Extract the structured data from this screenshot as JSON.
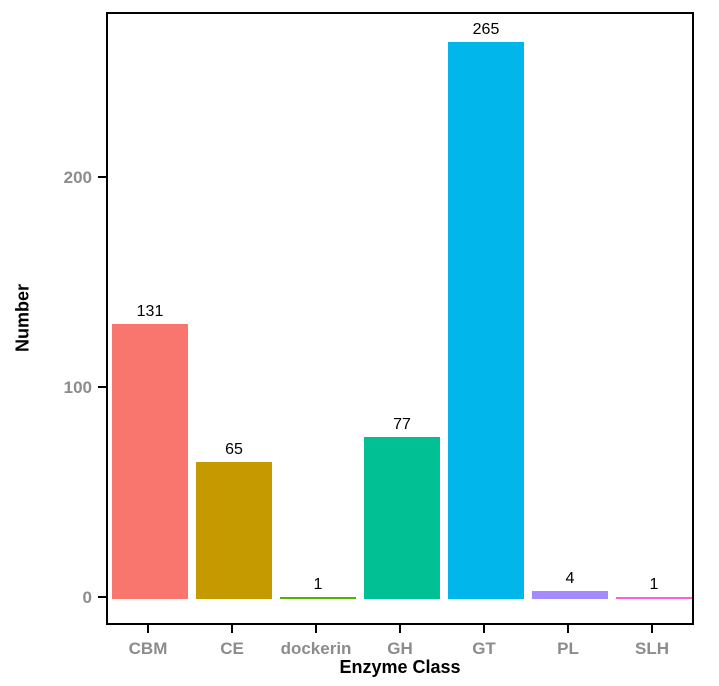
{
  "chart_data": {
    "type": "bar",
    "title": "",
    "xlabel": "Enzyme Class",
    "ylabel": "Number",
    "categories": [
      "CBM",
      "CE",
      "dockerin",
      "GH",
      "GT",
      "PL",
      "SLH"
    ],
    "values": [
      131,
      65,
      1,
      77,
      265,
      4,
      1
    ],
    "bar_labels": [
      "131",
      "65",
      "1",
      "77",
      "265",
      "4",
      "1"
    ],
    "bar_colors": [
      "#F8766D",
      "#C49A00",
      "#53B400",
      "#00C094",
      "#00B6EB",
      "#A58AFF",
      "#FB61D7"
    ],
    "y_ticks": [
      0,
      100,
      200
    ],
    "y_tick_labels": [
      "0",
      "100",
      "200"
    ],
    "ylim": [
      -13.25,
      278.25
    ],
    "bar_width_fraction": 0.9,
    "grid": false,
    "legend_position": "none",
    "colors": {
      "axis_text": "#8c8c8c",
      "axis_title": "#000000",
      "panel_border": "#000000",
      "value_label": "#000000",
      "background": "#ffffff"
    }
  }
}
